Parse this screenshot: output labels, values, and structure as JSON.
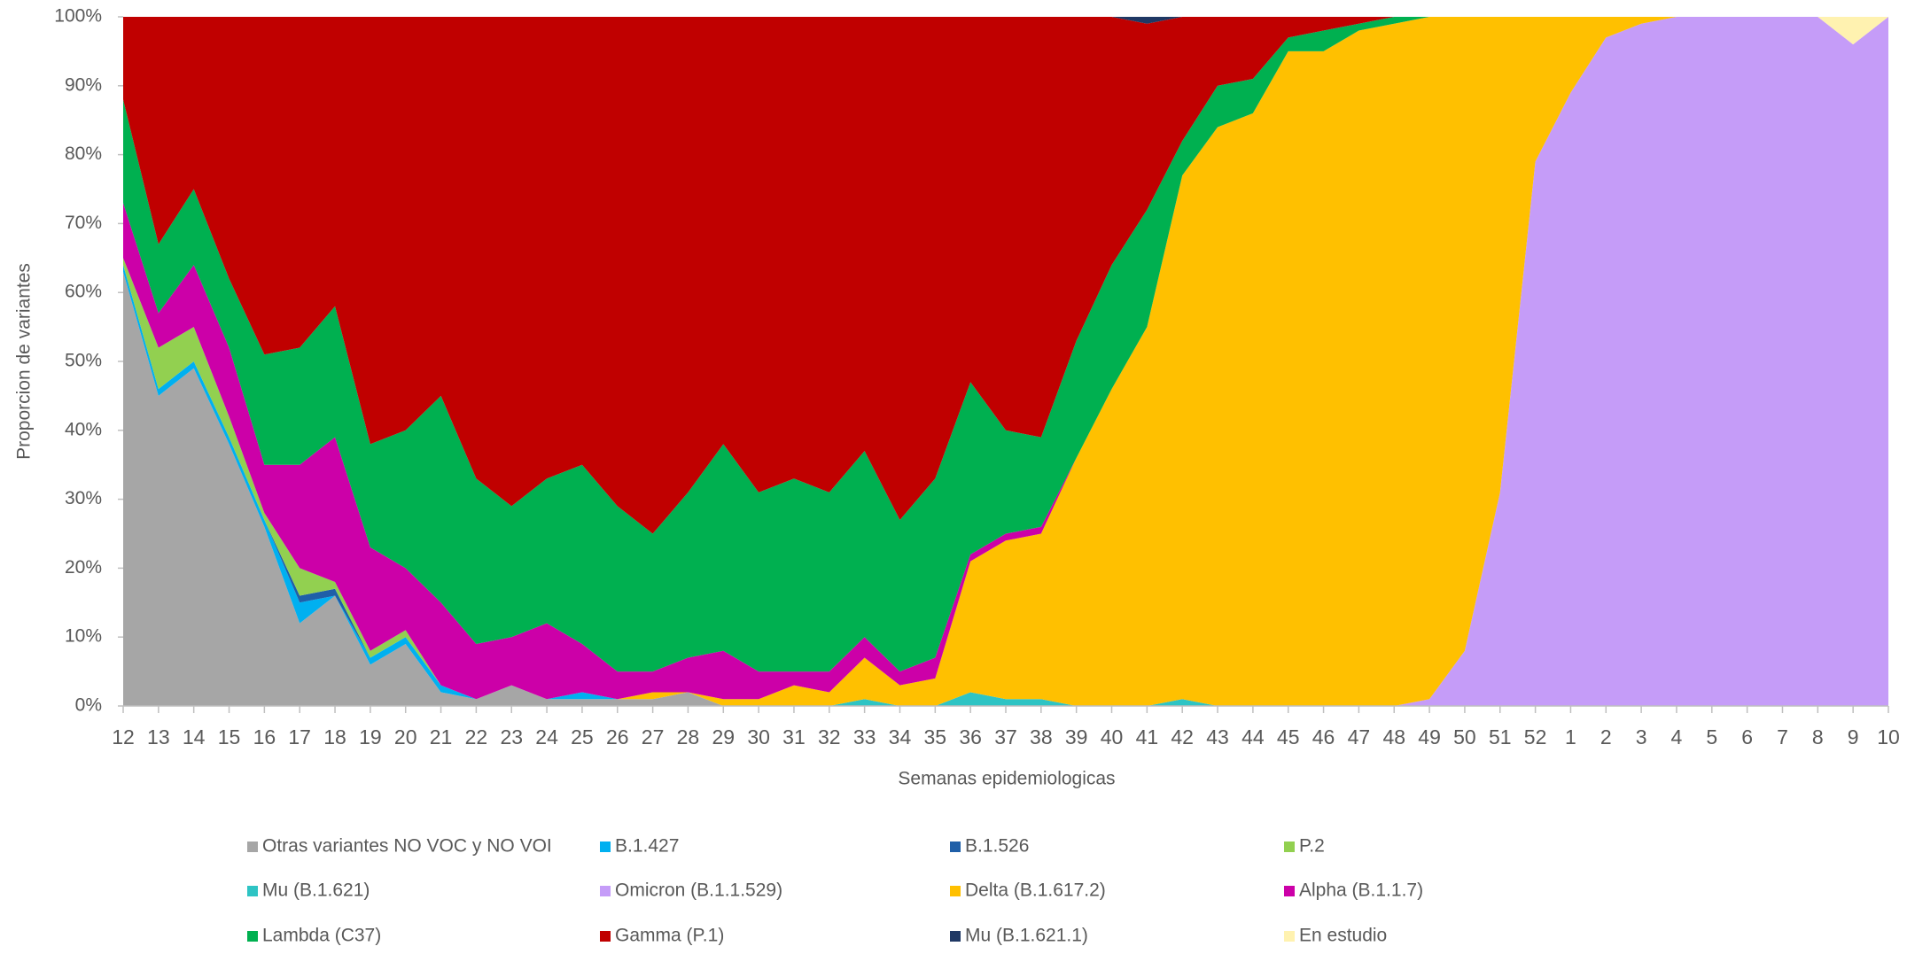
{
  "chart_data": {
    "type": "stacked_area",
    "x_label": "Semanas epidemiologicas",
    "y_label": "Proporcion de variantes",
    "categories": [
      "12",
      "13",
      "14",
      "15",
      "16",
      "17",
      "18",
      "19",
      "20",
      "21",
      "22",
      "23",
      "24",
      "25",
      "26",
      "27",
      "28",
      "29",
      "30",
      "31",
      "32",
      "33",
      "34",
      "35",
      "36",
      "37",
      "38",
      "39",
      "40",
      "41",
      "42",
      "43",
      "44",
      "45",
      "46",
      "47",
      "48",
      "49",
      "50",
      "51",
      "52",
      "1",
      "2",
      "3",
      "4",
      "5",
      "6",
      "7",
      "8",
      "9",
      "10"
    ],
    "ylim": [
      0,
      100
    ],
    "yticks": [
      {
        "value": 0,
        "label": "0%"
      },
      {
        "value": 10,
        "label": "10%"
      },
      {
        "value": 20,
        "label": "20%"
      },
      {
        "value": 30,
        "label": "30%"
      },
      {
        "value": 40,
        "label": "40%"
      },
      {
        "value": 50,
        "label": "50%"
      },
      {
        "value": 60,
        "label": "60%"
      },
      {
        "value": 70,
        "label": "70%"
      },
      {
        "value": 80,
        "label": "80%"
      },
      {
        "value": 90,
        "label": "90%"
      },
      {
        "value": 100,
        "label": "100%"
      }
    ],
    "grid": false,
    "series": [
      {
        "name": "Otras variantes NO VOC y NO VOI",
        "color": "#a6a6a6",
        "values": [
          63,
          45,
          49,
          38,
          26,
          12,
          16,
          6,
          9,
          2,
          1,
          3,
          1,
          1,
          1,
          1,
          2,
          0,
          0,
          0,
          0,
          0,
          0,
          0,
          0,
          0,
          0,
          0,
          0,
          0,
          0,
          0,
          0,
          0,
          0,
          0,
          0,
          0,
          0,
          0,
          0,
          0,
          0,
          0,
          0,
          0,
          0,
          0,
          0,
          0,
          0
        ]
      },
      {
        "name": "B.1.427",
        "color": "#00b0f0",
        "values": [
          1,
          1,
          1,
          1,
          1,
          3,
          0,
          1,
          1,
          1,
          0,
          0,
          0,
          1,
          0,
          0,
          0,
          0,
          0,
          0,
          0,
          0,
          0,
          0,
          0,
          0,
          0,
          0,
          0,
          0,
          0,
          0,
          0,
          0,
          0,
          0,
          0,
          0,
          0,
          0,
          0,
          0,
          0,
          0,
          0,
          0,
          0,
          0,
          0,
          0,
          0
        ]
      },
      {
        "name": "B.1.526",
        "color": "#1f5fa8",
        "values": [
          0,
          0,
          0,
          0,
          0,
          1,
          1,
          0,
          0,
          0,
          0,
          0,
          0,
          0,
          0,
          0,
          0,
          0,
          0,
          0,
          0,
          0,
          0,
          0,
          0,
          0,
          0,
          0,
          0,
          0,
          0,
          0,
          0,
          0,
          0,
          0,
          0,
          0,
          0,
          0,
          0,
          0,
          0,
          0,
          0,
          0,
          0,
          0,
          0,
          0,
          0
        ]
      },
      {
        "name": "P.2",
        "color": "#92d050",
        "values": [
          1,
          6,
          5,
          3,
          1,
          4,
          1,
          1,
          1,
          0,
          0,
          0,
          0,
          0,
          0,
          0,
          0,
          0,
          0,
          0,
          0,
          0,
          0,
          0,
          0,
          0,
          0,
          0,
          0,
          0,
          0,
          0,
          0,
          0,
          0,
          0,
          0,
          0,
          0,
          0,
          0,
          0,
          0,
          0,
          0,
          0,
          0,
          0,
          0,
          0,
          0
        ]
      },
      {
        "name": "Mu (B.1.621)",
        "color": "#2ec4c4",
        "values": [
          0,
          0,
          0,
          0,
          0,
          0,
          0,
          0,
          0,
          0,
          0,
          0,
          0,
          0,
          0,
          0,
          0,
          0,
          0,
          0,
          0,
          1,
          0,
          0,
          2,
          1,
          1,
          0,
          0,
          0,
          1,
          0,
          0,
          0,
          0,
          0,
          0,
          0,
          0,
          0,
          0,
          0,
          0,
          0,
          0,
          0,
          0,
          0,
          0,
          0,
          0
        ]
      },
      {
        "name": "Omicron (B.1.1.529)",
        "color": "#c59cf8",
        "values": [
          0,
          0,
          0,
          0,
          0,
          0,
          0,
          0,
          0,
          0,
          0,
          0,
          0,
          0,
          0,
          0,
          0,
          0,
          0,
          0,
          0,
          0,
          0,
          0,
          0,
          0,
          0,
          0,
          0,
          0,
          0,
          0,
          0,
          0,
          0,
          0,
          0,
          1,
          8,
          31,
          79,
          89,
          97,
          99,
          100,
          100,
          100,
          100,
          100,
          96,
          100
        ]
      },
      {
        "name": "Delta (B.1.617.2)",
        "color": "#ffc000",
        "values": [
          0,
          0,
          0,
          0,
          0,
          0,
          0,
          0,
          0,
          0,
          0,
          0,
          0,
          0,
          0,
          1,
          0,
          1,
          1,
          3,
          2,
          6,
          3,
          4,
          19,
          23,
          24,
          36,
          46,
          55,
          76,
          84,
          86,
          95,
          95,
          98,
          99,
          99,
          92,
          69,
          21,
          11,
          3,
          1,
          0,
          0,
          0,
          0,
          0,
          0,
          0
        ]
      },
      {
        "name": "Alpha (B.1.1.7)",
        "color": "#cc00a8",
        "values": [
          8,
          5,
          9,
          10,
          7,
          15,
          21,
          15,
          9,
          12,
          8,
          7,
          11,
          7,
          4,
          3,
          5,
          7,
          4,
          2,
          3,
          3,
          2,
          3,
          1,
          1,
          1,
          0,
          0,
          0,
          0,
          0,
          0,
          0,
          0,
          0,
          0,
          0,
          0,
          0,
          0,
          0,
          0,
          0,
          0,
          0,
          0,
          0,
          0,
          0,
          0
        ]
      },
      {
        "name": "Lambda (C37)",
        "color": "#00b050",
        "values": [
          15,
          10,
          11,
          10,
          16,
          17,
          19,
          15,
          20,
          30,
          24,
          19,
          21,
          26,
          24,
          20,
          24,
          30,
          26,
          28,
          26,
          27,
          22,
          26,
          25,
          15,
          13,
          17,
          18,
          17,
          5,
          6,
          5,
          2,
          3,
          1,
          1,
          0,
          0,
          0,
          0,
          0,
          0,
          0,
          0,
          0,
          0,
          0,
          0,
          0,
          0
        ]
      },
      {
        "name": "Gamma (P.1)",
        "color": "#c00000",
        "values": [
          12,
          33,
          25,
          38,
          49,
          48,
          42,
          62,
          60,
          55,
          67,
          71,
          67,
          65,
          71,
          75,
          69,
          62,
          69,
          67,
          69,
          63,
          73,
          67,
          53,
          60,
          61,
          47,
          36,
          27,
          18,
          10,
          9,
          3,
          2,
          1,
          0,
          0,
          0,
          0,
          0,
          0,
          0,
          0,
          0,
          0,
          0,
          0,
          0,
          0,
          0
        ]
      },
      {
        "name": "Mu (B.1.621.1)",
        "color": "#1f3864",
        "values": [
          0,
          0,
          0,
          0,
          0,
          0,
          0,
          0,
          0,
          0,
          0,
          0,
          0,
          0,
          0,
          0,
          0,
          0,
          0,
          0,
          0,
          0,
          0,
          0,
          0,
          0,
          0,
          0,
          0,
          1,
          0,
          0,
          0,
          0,
          0,
          0,
          0,
          0,
          0,
          0,
          0,
          0,
          0,
          0,
          0,
          0,
          0,
          0,
          0,
          0,
          0
        ]
      },
      {
        "name": "En estudio",
        "color": "#fff2b0",
        "values": [
          0,
          0,
          0,
          0,
          0,
          0,
          0,
          0,
          0,
          0,
          0,
          0,
          0,
          0,
          0,
          0,
          0,
          0,
          0,
          0,
          0,
          0,
          0,
          0,
          0,
          0,
          0,
          0,
          0,
          0,
          0,
          0,
          0,
          0,
          0,
          0,
          0,
          0,
          0,
          0,
          0,
          0,
          0,
          0,
          0,
          0,
          0,
          0,
          0,
          4,
          0
        ]
      }
    ]
  }
}
